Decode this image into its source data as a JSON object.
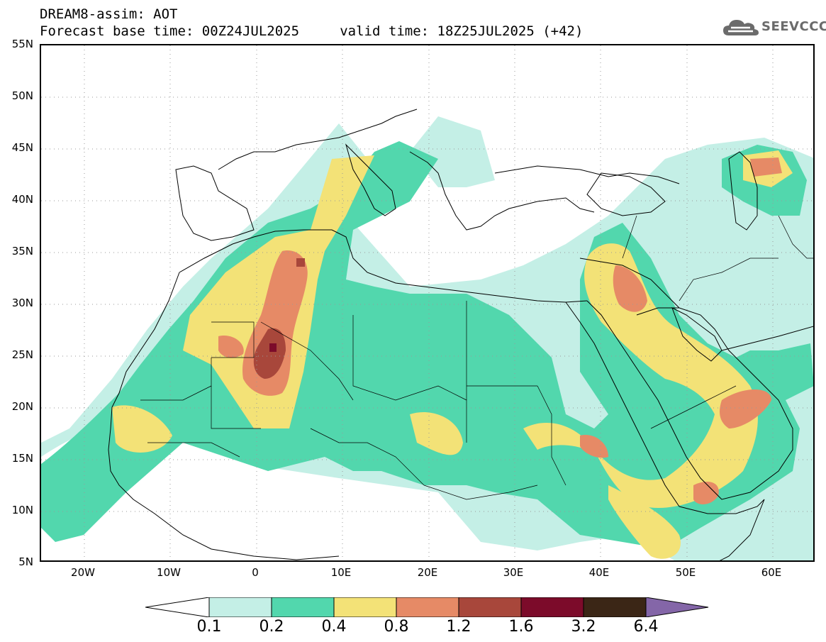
{
  "header": {
    "title_line1": "DREAM8-assim: AOT",
    "title_line2": "Forecast base time: 00Z24JUL2025     valid time: 18Z25JUL2025 (+42)"
  },
  "logo": {
    "text": "SEEVCCC",
    "icon": "cloud-icon"
  },
  "map": {
    "variable": "AOT",
    "projection": "cylindrical",
    "lon_range": [
      -25,
      65
    ],
    "lat_range": [
      5,
      55
    ],
    "lat_labels": [
      "55N",
      "50N",
      "45N",
      "40N",
      "35N",
      "30N",
      "25N",
      "20N",
      "15N",
      "10N",
      "5N"
    ],
    "lon_labels": [
      "20W",
      "10W",
      "0",
      "10E",
      "20E",
      "30E",
      "40E",
      "50E",
      "60E"
    ],
    "grid": "dotted"
  },
  "colorbar": {
    "levels": [
      "0.1",
      "0.2",
      "0.4",
      "0.8",
      "1.2",
      "1.6",
      "3.2",
      "6.4"
    ],
    "colors": {
      "0.1-0.2": "#c4efe6",
      "0.2-0.4": "#52d7ad",
      "0.4-0.8": "#f3e277",
      "0.8-1.2": "#e68a66",
      "1.2-1.6": "#a8473b",
      "1.6-3.2": "#7c0b2a",
      "3.2-6.4": "#3b2616",
      ">6.4": "#8466a8",
      "<0.1": "#ffffff"
    }
  }
}
